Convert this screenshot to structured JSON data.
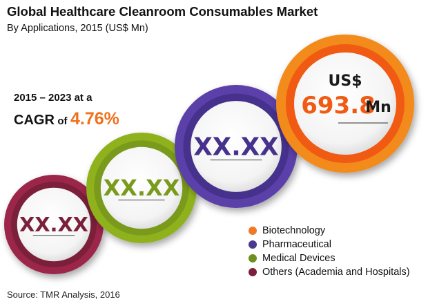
{
  "title": "Global Healthcare Cleanroom Consumables Market",
  "subtitle": "By Applications, 2015 (US$ Mn)",
  "cagr": {
    "period": "2015 – 2023 at a",
    "label": "CAGR",
    "of": "of",
    "value": "4.76%"
  },
  "source": "Source: TMR Analysis, 2016",
  "chart_data": {
    "type": "bubble",
    "title": "Global Healthcare Cleanroom Consumables Market",
    "subtitle": "By Applications, 2015 (US$ Mn)",
    "series": [
      {
        "name": "Others (Academia and Hospitals)",
        "value_label": "XX.XX",
        "color": "#7b1f3a",
        "ring": "#9b2748"
      },
      {
        "name": "Medical Devices",
        "value_label": "XX.XX",
        "color": "#7a9a1c",
        "ring": "#8fb21f"
      },
      {
        "name": "Pharmaceutical",
        "value_label": "XX.XX",
        "color": "#46318c",
        "ring": "#5a3fa8"
      },
      {
        "name": "Biotechnology",
        "value": 693.8,
        "unit_prefix": "US$",
        "value_label": "693.8",
        "unit_suffix": "Mn",
        "color": "#f05a12",
        "ring": "#f38a1a"
      }
    ],
    "legend": [
      {
        "label": "Biotechnology",
        "color": "#f07a24"
      },
      {
        "label": "Pharmaceutical",
        "color": "#4a3a8e"
      },
      {
        "label": "Medical Devices",
        "color": "#6d8f1e"
      },
      {
        "label": "Others (Academia and Hospitals)",
        "color": "#7b1f3a"
      }
    ]
  }
}
